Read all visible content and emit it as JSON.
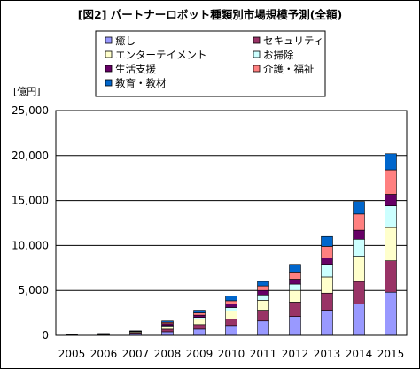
{
  "chart_data": {
    "type": "bar",
    "stacked": true,
    "title": "[図2] パートナーロボット種類別市場規模予測(全額)",
    "unit_label": "[億円]",
    "categories": [
      "2005",
      "2006",
      "2007",
      "2008",
      "2009",
      "2010",
      "2011",
      "2012",
      "2013",
      "2014",
      "2015"
    ],
    "ylim": [
      0,
      25000
    ],
    "yticks": [
      0,
      5000,
      10000,
      15000,
      20000,
      25000
    ],
    "ytick_labels": [
      "0",
      "5,000",
      "10,000",
      "15,000",
      "20,000",
      "25,000"
    ],
    "grid": true,
    "legend_position": "top-left",
    "series": [
      {
        "name": "癒し",
        "color": "#9999ff",
        "values": [
          10,
          50,
          150,
          400,
          700,
          1100,
          1600,
          2100,
          2800,
          3500,
          4800
        ]
      },
      {
        "name": "セキュリティ",
        "color": "#993366",
        "values": [
          10,
          40,
          120,
          300,
          500,
          700,
          1200,
          1600,
          1900,
          2500,
          3500
        ]
      },
      {
        "name": "エンターテイメント",
        "color": "#ffffcc",
        "values": [
          10,
          40,
          100,
          300,
          600,
          900,
          1100,
          1300,
          1800,
          2800,
          3700
        ]
      },
      {
        "name": "お掃除",
        "color": "#ccffff",
        "values": [
          5,
          20,
          40,
          100,
          200,
          400,
          600,
          700,
          1400,
          1900,
          2400
        ]
      },
      {
        "name": "生活支援",
        "color": "#660066",
        "values": [
          5,
          20,
          40,
          200,
          250,
          400,
          500,
          550,
          700,
          1000,
          1300
        ]
      },
      {
        "name": "介護・福祉",
        "color": "#ff8080",
        "values": [
          5,
          15,
          30,
          150,
          250,
          350,
          500,
          800,
          1300,
          1800,
          2700
        ]
      },
      {
        "name": "教育・教材",
        "color": "#0066cc",
        "values": [
          5,
          15,
          20,
          150,
          300,
          550,
          500,
          850,
          1100,
          1400,
          1800
        ]
      }
    ]
  }
}
